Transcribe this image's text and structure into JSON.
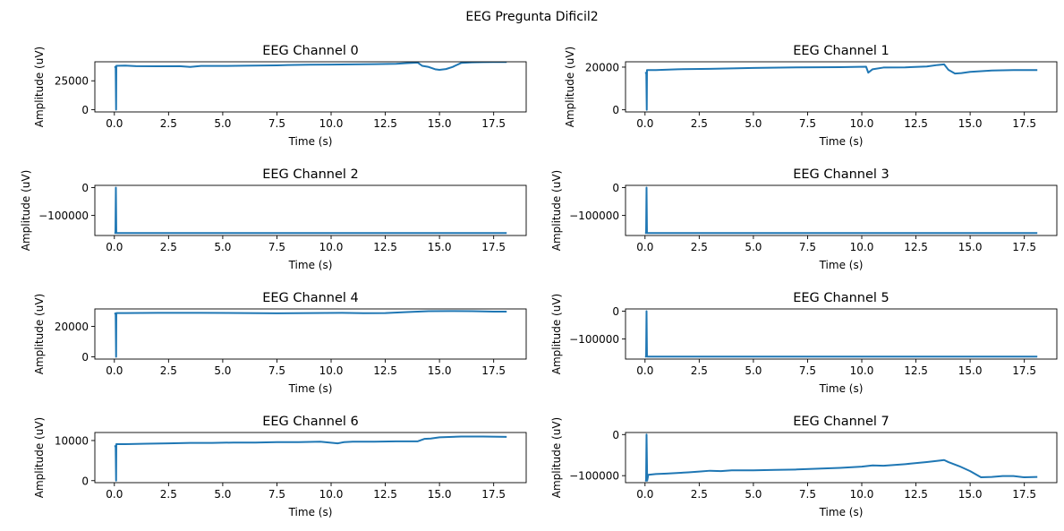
{
  "figure": {
    "suptitle": "EEG Pregunta Dificil2"
  },
  "style": {
    "line_color": "#1f77b4",
    "axis_color": "#000000",
    "background": "#ffffff"
  },
  "chart_data": [
    {
      "type": "line",
      "title": "EEG Channel 0",
      "xlabel": "Time (s)",
      "ylabel": "Amplitude (uV)",
      "xlim": [
        -0.9,
        19.0
      ],
      "ylim": [
        -2000,
        41500
      ],
      "xticks": [
        0.0,
        2.5,
        5.0,
        7.5,
        10.0,
        12.5,
        15.0,
        17.5
      ],
      "xtick_labels": [
        "0.0",
        "2.5",
        "5.0",
        "7.5",
        "10.0",
        "12.5",
        "15.0",
        "17.5"
      ],
      "yticks": [
        0,
        25000
      ],
      "ytick_labels": [
        "0",
        "25000"
      ],
      "grid": false,
      "series": [
        {
          "x": [
            0.0,
            0.02,
            0.06,
            0.08,
            0.09,
            0.5,
            1.0,
            2.0,
            3.0,
            3.5,
            4.0,
            5.0,
            6.0,
            7.0,
            7.5,
            8.0,
            9.0,
            10.0,
            11.0,
            12.0,
            13.0,
            13.5,
            14.0,
            14.2,
            14.5,
            14.8,
            15.0,
            15.3,
            15.6,
            16.0,
            16.5,
            17.0,
            17.5,
            18.1
          ],
          "y": [
            37000,
            37000,
            37000,
            0,
            38000,
            38200,
            37700,
            37600,
            37700,
            37000,
            37900,
            37900,
            38100,
            38300,
            38400,
            38700,
            39000,
            39100,
            39300,
            39500,
            39800,
            40300,
            40800,
            38000,
            37000,
            35000,
            34500,
            35200,
            37000,
            40500,
            41000,
            41200,
            41300,
            41300
          ]
        }
      ]
    },
    {
      "type": "line",
      "title": "EEG Channel 1",
      "xlabel": "Time (s)",
      "ylabel": "Amplitude (uV)",
      "xlim": [
        -0.9,
        19.0
      ],
      "ylim": [
        -1000,
        22500
      ],
      "xticks": [
        0.0,
        2.5,
        5.0,
        7.5,
        10.0,
        12.5,
        15.0,
        17.5
      ],
      "xtick_labels": [
        "0.0",
        "2.5",
        "5.0",
        "7.5",
        "10.0",
        "12.5",
        "15.0",
        "17.5"
      ],
      "yticks": [
        0,
        20000
      ],
      "ytick_labels": [
        "0",
        "20000"
      ],
      "grid": false,
      "series": [
        {
          "x": [
            0.0,
            0.02,
            0.06,
            0.08,
            0.09,
            0.5,
            1.5,
            3.0,
            5.0,
            7.0,
            9.0,
            10.2,
            10.3,
            10.5,
            11.0,
            12.0,
            13.0,
            13.5,
            13.8,
            14.0,
            14.3,
            14.6,
            15.0,
            16.0,
            17.0,
            18.1
          ],
          "y": [
            17300,
            17300,
            17300,
            0,
            18600,
            18600,
            19000,
            19200,
            19600,
            19900,
            20000,
            20200,
            17400,
            19000,
            19800,
            19900,
            20300,
            21000,
            21300,
            18700,
            17000,
            17200,
            17800,
            18400,
            18600,
            18600
          ]
        }
      ]
    },
    {
      "type": "line",
      "title": "EEG Channel 2",
      "xlabel": "Time (s)",
      "ylabel": "Amplitude (uV)",
      "xlim": [
        -0.9,
        19.0
      ],
      "ylim": [
        -172000,
        8000
      ],
      "xticks": [
        0.0,
        2.5,
        5.0,
        7.5,
        10.0,
        12.5,
        15.0,
        17.5
      ],
      "xtick_labels": [
        "0.0",
        "2.5",
        "5.0",
        "7.5",
        "10.0",
        "12.5",
        "15.0",
        "17.5"
      ],
      "yticks": [
        0,
        -100000
      ],
      "ytick_labels": [
        "0",
        "−100000"
      ],
      "grid": false,
      "series": [
        {
          "x": [
            0.0,
            0.05,
            0.07,
            0.09,
            0.1,
            18.1
          ],
          "y": [
            -163000,
            -163000,
            0,
            -163000,
            -163000,
            -163000
          ]
        }
      ]
    },
    {
      "type": "line",
      "title": "EEG Channel 3",
      "xlabel": "Time (s)",
      "ylabel": "Amplitude (uV)",
      "xlim": [
        -0.9,
        19.0
      ],
      "ylim": [
        -172000,
        8000
      ],
      "xticks": [
        0.0,
        2.5,
        5.0,
        7.5,
        10.0,
        12.5,
        15.0,
        17.5
      ],
      "xtick_labels": [
        "0.0",
        "2.5",
        "5.0",
        "7.5",
        "10.0",
        "12.5",
        "15.0",
        "17.5"
      ],
      "yticks": [
        0,
        -100000
      ],
      "ytick_labels": [
        "0",
        "−100000"
      ],
      "grid": false,
      "series": [
        {
          "x": [
            0.0,
            0.05,
            0.07,
            0.09,
            0.1,
            18.1
          ],
          "y": [
            -163000,
            -163000,
            0,
            -163000,
            -163000,
            -163000
          ]
        }
      ]
    },
    {
      "type": "line",
      "title": "EEG Channel 4",
      "xlabel": "Time (s)",
      "ylabel": "Amplitude (uV)",
      "xlim": [
        -0.9,
        19.0
      ],
      "ylim": [
        -1500,
        31500
      ],
      "xticks": [
        0.0,
        2.5,
        5.0,
        7.5,
        10.0,
        12.5,
        15.0,
        17.5
      ],
      "xtick_labels": [
        "0.0",
        "2.5",
        "5.0",
        "7.5",
        "10.0",
        "12.5",
        "15.0",
        "17.5"
      ],
      "yticks": [
        0,
        20000
      ],
      "ytick_labels": [
        "0",
        "20000"
      ],
      "grid": false,
      "series": [
        {
          "x": [
            0.0,
            0.02,
            0.06,
            0.08,
            0.09,
            0.5,
            2.0,
            4.0,
            6.0,
            7.5,
            9.0,
            10.5,
            11.5,
            12.5,
            13.5,
            14.5,
            15.5,
            16.5,
            17.5,
            18.1
          ],
          "y": [
            28500,
            28500,
            28500,
            0,
            28800,
            28800,
            28900,
            28900,
            28800,
            28600,
            28800,
            28900,
            28700,
            28800,
            29400,
            30000,
            30100,
            30000,
            29700,
            29700
          ]
        }
      ]
    },
    {
      "type": "line",
      "title": "EEG Channel 5",
      "xlabel": "Time (s)",
      "ylabel": "Amplitude (uV)",
      "xlim": [
        -0.9,
        19.0
      ],
      "ylim": [
        -172000,
        8000
      ],
      "xticks": [
        0.0,
        2.5,
        5.0,
        7.5,
        10.0,
        12.5,
        15.0,
        17.5
      ],
      "xtick_labels": [
        "0.0",
        "2.5",
        "5.0",
        "7.5",
        "10.0",
        "12.5",
        "15.0",
        "17.5"
      ],
      "yticks": [
        0,
        -100000
      ],
      "ytick_labels": [
        "0",
        "−100000"
      ],
      "grid": false,
      "series": [
        {
          "x": [
            0.0,
            0.05,
            0.07,
            0.09,
            0.1,
            18.1
          ],
          "y": [
            -163000,
            -163000,
            0,
            -163000,
            -163000,
            -163000
          ]
        }
      ]
    },
    {
      "type": "line",
      "title": "EEG Channel 6",
      "xlabel": "Time (s)",
      "ylabel": "Amplitude (uV)",
      "xlim": [
        -0.9,
        19.0
      ],
      "ylim": [
        -500,
        12000
      ],
      "xticks": [
        0.0,
        2.5,
        5.0,
        7.5,
        10.0,
        12.5,
        15.0,
        17.5
      ],
      "xtick_labels": [
        "0.0",
        "2.5",
        "5.0",
        "7.5",
        "10.0",
        "12.5",
        "15.0",
        "17.5"
      ],
      "yticks": [
        0,
        10000
      ],
      "ytick_labels": [
        "0",
        "10000"
      ],
      "grid": false,
      "series": [
        {
          "x": [
            0.0,
            0.02,
            0.06,
            0.08,
            0.09,
            0.5,
            1.5,
            2.5,
            3.5,
            4.5,
            5.5,
            6.5,
            7.5,
            8.5,
            9.5,
            10.3,
            10.6,
            11.0,
            12.0,
            13.0,
            14.0,
            14.3,
            14.6,
            15.0,
            16.0,
            17.0,
            18.1
          ],
          "y": [
            8600,
            8600,
            8600,
            0,
            9100,
            9100,
            9200,
            9300,
            9400,
            9400,
            9500,
            9500,
            9600,
            9600,
            9700,
            9300,
            9600,
            9700,
            9700,
            9800,
            9800,
            10400,
            10500,
            10800,
            11000,
            11000,
            10900
          ]
        }
      ]
    },
    {
      "type": "line",
      "title": "EEG Channel 7",
      "xlabel": "Time (s)",
      "ylabel": "Amplitude (uV)",
      "xlim": [
        -0.9,
        19.0
      ],
      "ylim": [
        -117000,
        5000
      ],
      "xticks": [
        0.0,
        2.5,
        5.0,
        7.5,
        10.0,
        12.5,
        15.0,
        17.5
      ],
      "xtick_labels": [
        "0.0",
        "2.5",
        "5.0",
        "7.5",
        "10.0",
        "12.5",
        "15.0",
        "17.5"
      ],
      "yticks": [
        0,
        -100000
      ],
      "ytick_labels": [
        "0",
        "−100000"
      ],
      "grid": false,
      "series": [
        {
          "x": [
            0.0,
            0.05,
            0.07,
            0.1,
            0.15,
            0.5,
            1.0,
            2.0,
            2.5,
            3.0,
            3.5,
            4.0,
            5.0,
            6.0,
            7.0,
            8.0,
            9.0,
            10.0,
            10.5,
            11.0,
            12.0,
            13.0,
            13.5,
            13.8,
            14.0,
            14.5,
            15.0,
            15.5,
            16.0,
            16.5,
            17.0,
            17.5,
            18.1
          ],
          "y": [
            -112000,
            -112000,
            0,
            -112000,
            -98000,
            -96000,
            -95000,
            -92000,
            -90000,
            -88000,
            -89000,
            -87000,
            -87000,
            -86000,
            -85000,
            -83000,
            -81000,
            -78000,
            -75000,
            -76000,
            -72000,
            -67000,
            -64000,
            -62000,
            -67000,
            -77000,
            -89000,
            -104000,
            -103000,
            -101000,
            -101000,
            -104000,
            -103000
          ]
        }
      ]
    }
  ]
}
